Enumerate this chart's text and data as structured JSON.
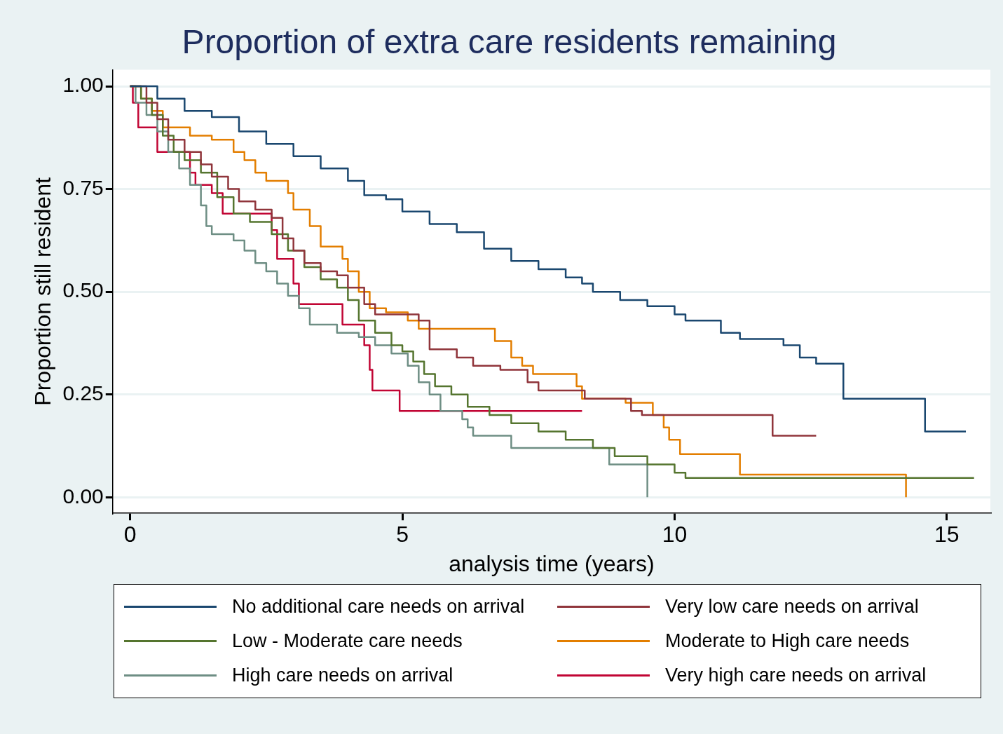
{
  "chart_data": {
    "type": "step",
    "title": "Proportion of extra care residents remaining",
    "xlabel": "analysis time (years)",
    "ylabel": "Proportion still resident",
    "xlim": [
      -0.32,
      15.8
    ],
    "xticks": [
      0,
      5,
      10,
      15
    ],
    "ylim": [
      -0.039,
      1.04
    ],
    "yticks": [
      {
        "value": 0,
        "label": "0.00"
      },
      {
        "value": 0.25,
        "label": "0.25"
      },
      {
        "value": 0.5,
        "label": "0.50"
      },
      {
        "value": 0.75,
        "label": "0.75"
      },
      {
        "value": 1,
        "label": "1.00"
      }
    ],
    "grid": "y",
    "legend": "bottom",
    "series": [
      {
        "name": "No additional care needs on arrival",
        "color": "#1a476f",
        "x": [
          0,
          0.5,
          1,
          1.5,
          2,
          2.5,
          3,
          3.5,
          4,
          4.3,
          4.7,
          5,
          5.5,
          6,
          6.5,
          7,
          7.5,
          8,
          8.3,
          8.5,
          9,
          9.5,
          10,
          10.2,
          10.85,
          11.2,
          12,
          12.3,
          12.6,
          13.1,
          14.6,
          15.35
        ],
        "values": [
          1,
          0.97,
          0.94,
          0.925,
          0.89,
          0.86,
          0.83,
          0.8,
          0.77,
          0.735,
          0.725,
          0.695,
          0.665,
          0.645,
          0.605,
          0.575,
          0.555,
          0.535,
          0.52,
          0.5,
          0.48,
          0.465,
          0.445,
          0.43,
          0.4,
          0.385,
          0.37,
          0.34,
          0.325,
          0.24,
          0.16,
          0.16
        ]
      },
      {
        "name": "Very low care needs on arrival",
        "color": "#90353b",
        "x": [
          0,
          0.3,
          0.5,
          0.7,
          1,
          1.3,
          1.5,
          1.8,
          2,
          2.3,
          2.6,
          2.8,
          3,
          3.2,
          3.5,
          3.8,
          4,
          4.3,
          4.5,
          5.3,
          5.5,
          6,
          6.3,
          6.8,
          7.3,
          7.5,
          8.35,
          9.2,
          9.4,
          11.8,
          12.6
        ],
        "values": [
          1,
          0.96,
          0.92,
          0.87,
          0.84,
          0.81,
          0.78,
          0.75,
          0.72,
          0.7,
          0.68,
          0.63,
          0.6,
          0.57,
          0.55,
          0.54,
          0.51,
          0.47,
          0.445,
          0.43,
          0.36,
          0.34,
          0.32,
          0.31,
          0.28,
          0.26,
          0.24,
          0.21,
          0.2,
          0.15,
          0.15
        ]
      },
      {
        "name": "Low - Moderate care needs",
        "color": "#55752f",
        "x": [
          0,
          0.2,
          0.4,
          0.6,
          0.8,
          1,
          1.3,
          1.6,
          1.9,
          2.2,
          2.6,
          2.9,
          3.2,
          3.5,
          3.8,
          4,
          4.2,
          4.5,
          4.8,
          5,
          5.2,
          5.4,
          5.6,
          5.9,
          6.2,
          6.6,
          7,
          7.5,
          8,
          8.5,
          8.9,
          9.5,
          10,
          10.2,
          15.5
        ],
        "values": [
          1,
          0.97,
          0.93,
          0.88,
          0.84,
          0.82,
          0.79,
          0.73,
          0.69,
          0.67,
          0.64,
          0.6,
          0.56,
          0.53,
          0.51,
          0.48,
          0.43,
          0.4,
          0.37,
          0.355,
          0.33,
          0.3,
          0.27,
          0.25,
          0.22,
          0.2,
          0.18,
          0.16,
          0.14,
          0.12,
          0.1,
          0.08,
          0.06,
          0.047,
          0.047
        ]
      },
      {
        "name": "Moderate to High care needs",
        "color": "#e37e00",
        "x": [
          0,
          0.2,
          0.4,
          0.6,
          1.1,
          1.5,
          1.9,
          2.1,
          2.3,
          2.5,
          2.9,
          3,
          3.3,
          3.5,
          3.9,
          4,
          4.2,
          4.4,
          4.7,
          5.1,
          5.3,
          6.7,
          7,
          7.2,
          7.4,
          8.2,
          8.3,
          9.1,
          9.6,
          9.8,
          9.9,
          10.1,
          11.2,
          14.25
        ],
        "values": [
          1,
          0.97,
          0.94,
          0.9,
          0.88,
          0.87,
          0.84,
          0.82,
          0.79,
          0.77,
          0.74,
          0.7,
          0.66,
          0.61,
          0.58,
          0.55,
          0.5,
          0.46,
          0.45,
          0.43,
          0.41,
          0.38,
          0.34,
          0.32,
          0.3,
          0.27,
          0.24,
          0.23,
          0.2,
          0.17,
          0.14,
          0.105,
          0.055,
          0
        ]
      },
      {
        "name": "High care needs on arrival",
        "color": "#6e8e84",
        "x": [
          0,
          0.1,
          0.3,
          0.5,
          0.7,
          0.9,
          1.1,
          1.3,
          1.4,
          1.5,
          1.9,
          2.1,
          2.3,
          2.5,
          2.7,
          2.9,
          3.1,
          3.3,
          3.8,
          4.2,
          4.5,
          4.8,
          5.1,
          5.3,
          5.5,
          5.7,
          6.1,
          6.2,
          6.3,
          7,
          8.8,
          9.5
        ],
        "values": [
          1,
          0.96,
          0.93,
          0.89,
          0.84,
          0.8,
          0.76,
          0.71,
          0.66,
          0.64,
          0.625,
          0.6,
          0.57,
          0.55,
          0.52,
          0.49,
          0.46,
          0.42,
          0.4,
          0.39,
          0.37,
          0.35,
          0.32,
          0.28,
          0.25,
          0.21,
          0.19,
          0.17,
          0.15,
          0.12,
          0.08,
          0
        ]
      },
      {
        "name": "Very high care needs on arrival",
        "color": "#c10534",
        "x": [
          0,
          0.05,
          0.15,
          0.5,
          1.1,
          1.2,
          1.5,
          1.7,
          2.6,
          2.7,
          3,
          3.1,
          3.9,
          4.3,
          4.4,
          4.45,
          4.95,
          8.3
        ],
        "values": [
          1,
          0.96,
          0.9,
          0.84,
          0.79,
          0.76,
          0.74,
          0.69,
          0.65,
          0.58,
          0.52,
          0.47,
          0.42,
          0.37,
          0.31,
          0.26,
          0.21,
          0.21
        ]
      }
    ]
  }
}
